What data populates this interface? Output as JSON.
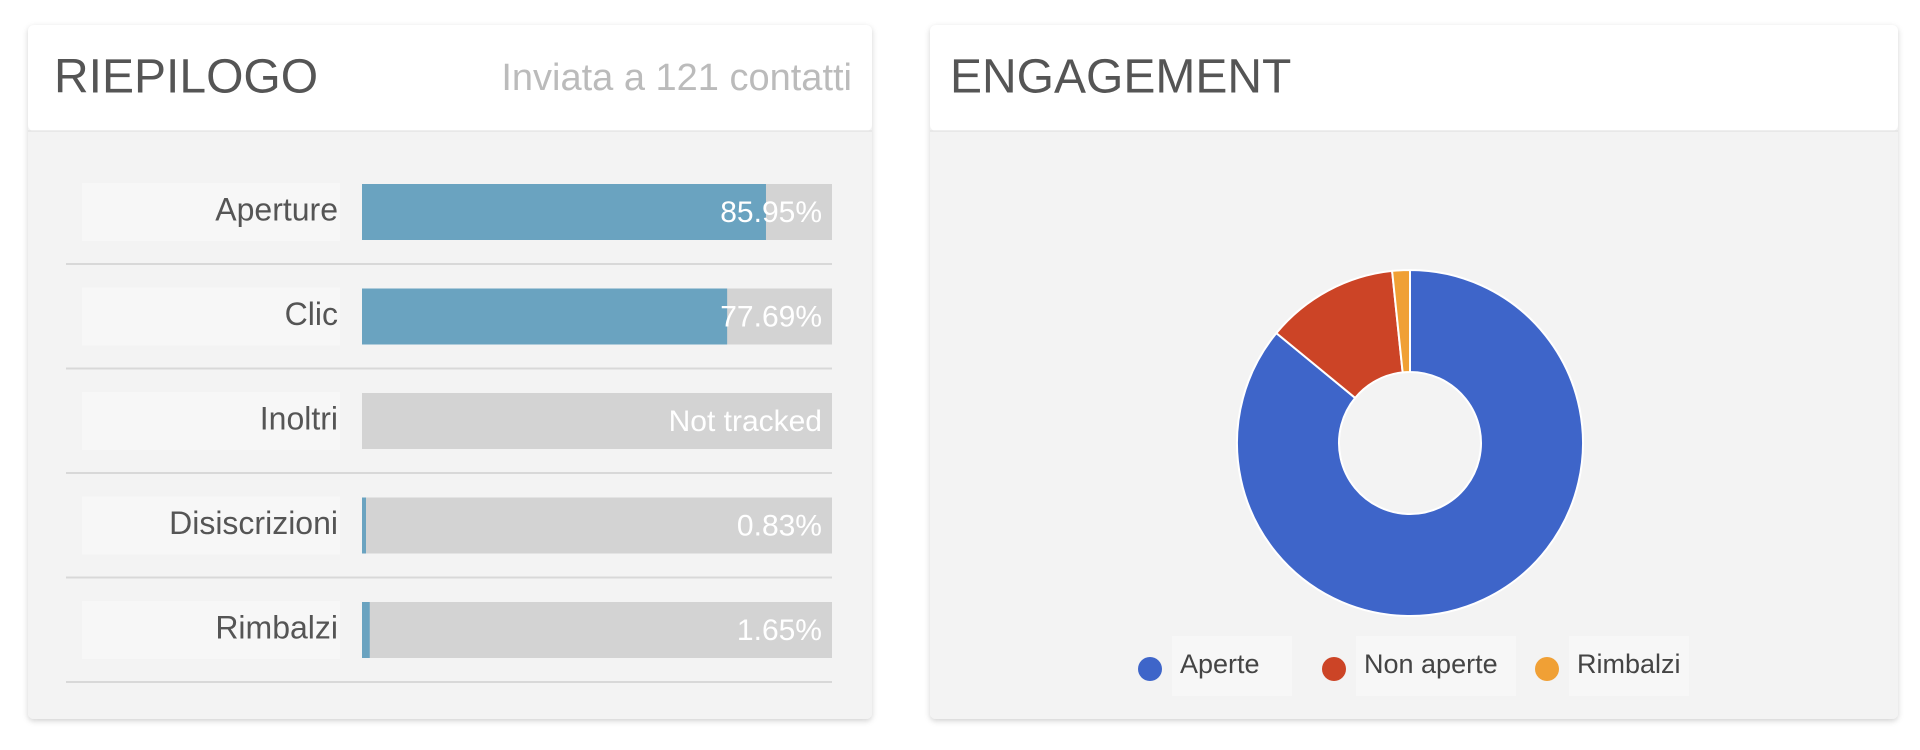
{
  "summary": {
    "title": "RIEPILOGO",
    "subtitle": "Inviata a 121 contatti",
    "xlim": [
      0,
      100
    ],
    "color": "#6aa3c0",
    "track_color": "#d3d3d3",
    "rows": [
      {
        "label": "Aperture",
        "value": 85.95,
        "value_label": "85.95%"
      },
      {
        "label": "Clic",
        "value": 77.69,
        "value_label": "77.69%"
      },
      {
        "label": "Inoltri",
        "value": null,
        "value_label": "Not tracked"
      },
      {
        "label": "Disiscrizioni",
        "value": 0.83,
        "value_label": "0.83%"
      },
      {
        "label": "Rimbalzi",
        "value": 1.65,
        "value_label": "1.65%"
      }
    ]
  },
  "chart_data": {
    "type": "pie",
    "title": "ENGAGEMENT",
    "categories": [
      "Aperte",
      "Non aperte",
      "Rimbalzi"
    ],
    "values": [
      85.95,
      12.4,
      1.65
    ],
    "colors": [
      "#3e65c9",
      "#cc4426",
      "#f0a035"
    ],
    "legend": "bottom"
  }
}
